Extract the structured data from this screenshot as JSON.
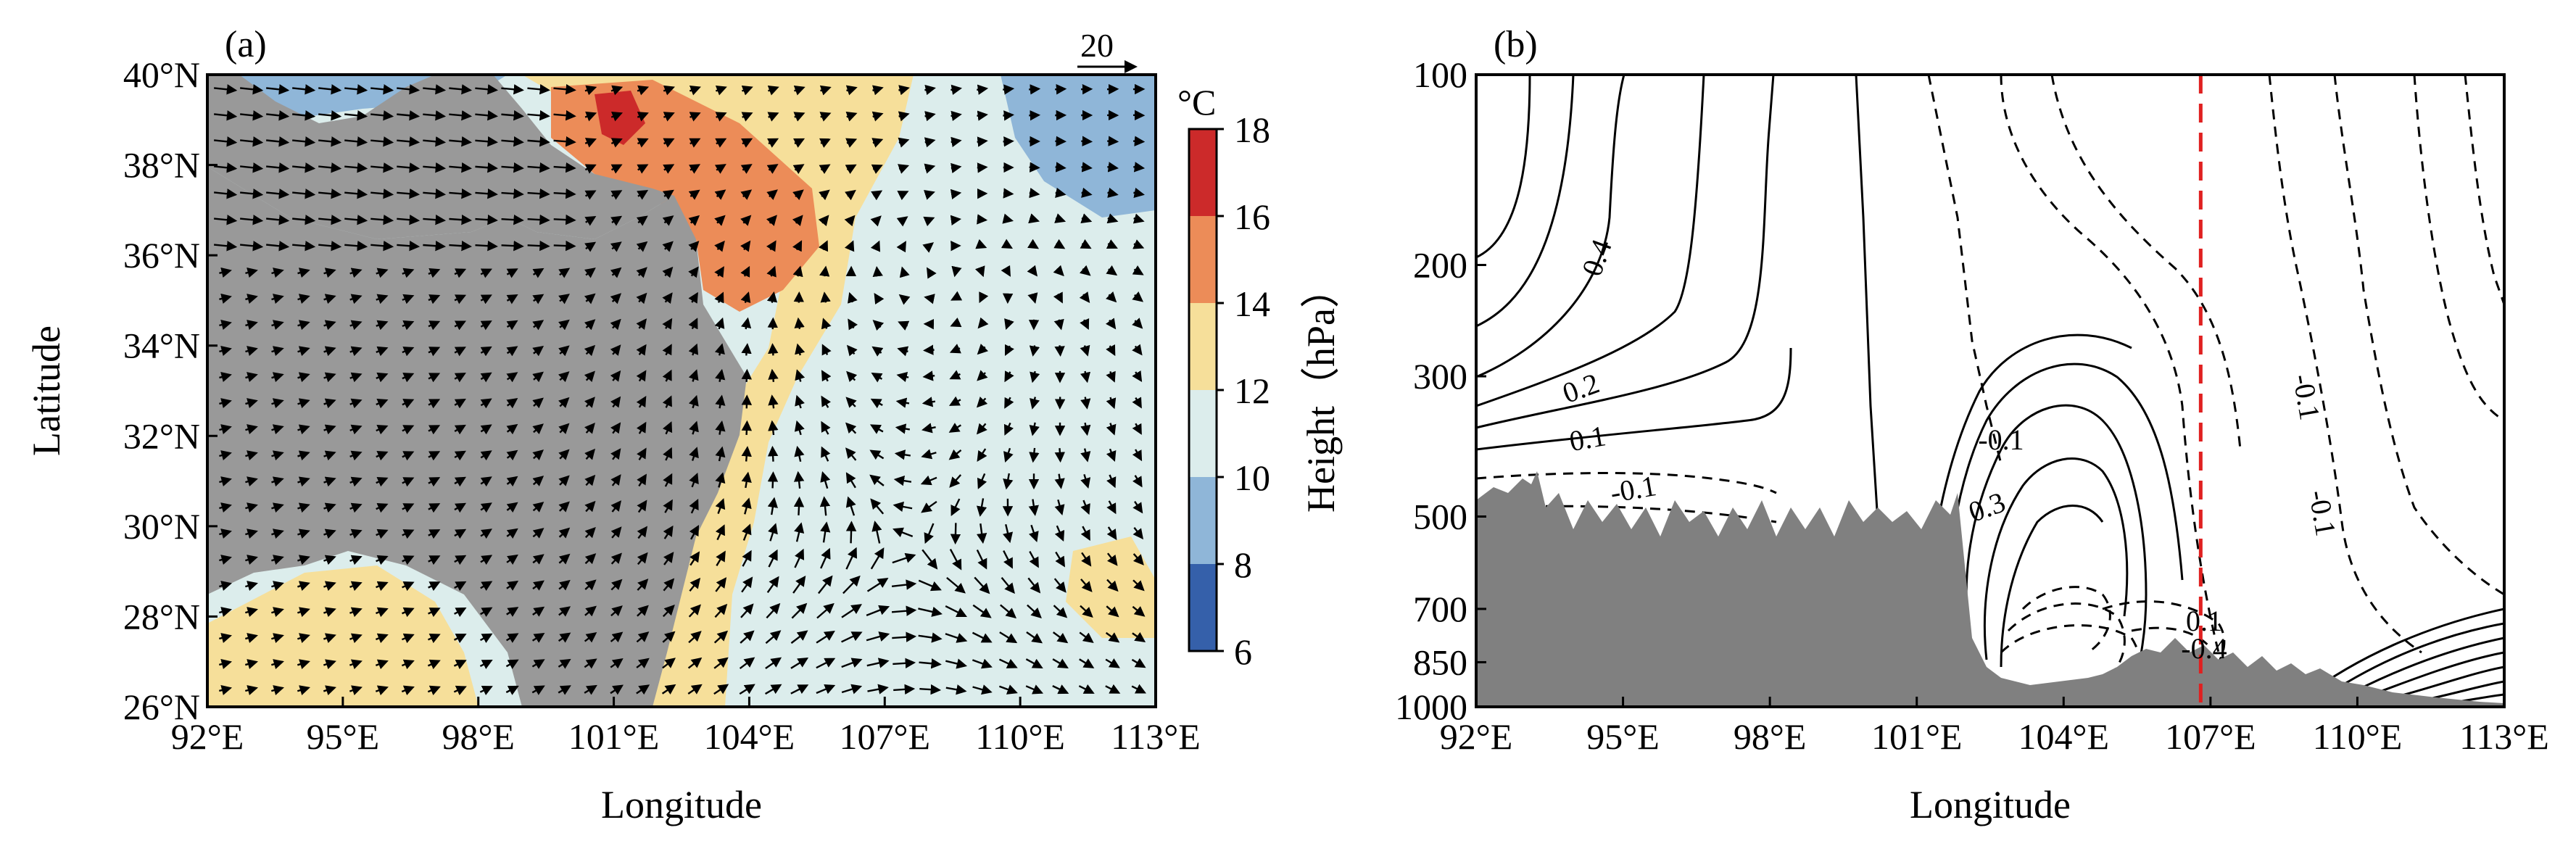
{
  "panel_a": {
    "label": "(a)",
    "xlabel": "Longitude",
    "ylabel": "Latitude",
    "x_ticks": [
      "92°E",
      "95°E",
      "98°E",
      "101°E",
      "104°E",
      "107°E",
      "110°E",
      "113°E"
    ],
    "y_ticks": [
      "26°N",
      "28°N",
      "30°N",
      "32°N",
      "34°N",
      "36°N",
      "38°N",
      "40°N"
    ],
    "reference_vector_label": "20",
    "colorbar_unit": "°C",
    "colorbar_ticks": [
      "6",
      "8",
      "10",
      "12",
      "14",
      "16",
      "18"
    ],
    "colorbar_colors": [
      "#3560aa",
      "#8fb6d8",
      "#dcedec",
      "#f6df9a",
      "#ec8c58",
      "#cc2a2a"
    ],
    "terrain_color": "#999999"
  },
  "panel_b": {
    "label": "(b)",
    "xlabel": "Longitude",
    "ylabel": "Height（hPa）",
    "x_ticks": [
      "92°E",
      "95°E",
      "98°E",
      "101°E",
      "104°E",
      "107°E",
      "110°E",
      "113°E"
    ],
    "y_ticks": [
      "100",
      "200",
      "300",
      "500",
      "700",
      "850",
      "1000"
    ],
    "contour_labels": [
      "0.4",
      "0.2",
      "0.1",
      "-0.1",
      "0.3",
      "-0.1",
      "-0.1",
      "-0.1",
      "0.1",
      "-0.4"
    ],
    "marker_line_color": "#e02020",
    "terrain_color": "#808080"
  },
  "chart_data": [
    {
      "type": "heatmap",
      "panel": "a",
      "xlabel": "Longitude",
      "ylabel": "Latitude",
      "xlim": [
        92,
        113
      ],
      "ylim": [
        26,
        40
      ],
      "colorbar": {
        "unit": "°C",
        "levels": [
          6,
          8,
          10,
          12,
          14,
          16,
          18
        ]
      },
      "overlay": "wind vectors",
      "reference_vector": 20,
      "cyclonic_center": {
        "lon": 107.5,
        "lat": 29.5
      }
    },
    {
      "type": "line",
      "panel": "b",
      "xlabel": "Longitude",
      "ylabel": "Height（hPa）",
      "xlim": [
        92,
        113
      ],
      "ylim": [
        1000,
        100
      ],
      "y_scale": "log",
      "marker_longitude": 106.8,
      "contour_labels": [
        0.4,
        0.2,
        0.1,
        -0.1,
        0.3,
        -0.1,
        -0.1,
        -0.1,
        0.1,
        -0.4
      ]
    }
  ]
}
